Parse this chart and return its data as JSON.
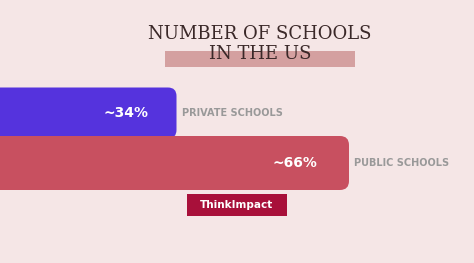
{
  "background_color": "#f5e6e6",
  "title_line1": "NUMBER OF SCHOOLS",
  "title_line2": "IN THE US",
  "title_color": "#3a2828",
  "title_fontsize": 13,
  "title_font": "serif",
  "underline_color": "#d4a0a0",
  "bar1_label": "~34%",
  "bar1_desc": "PRIVATE SCHOOLS",
  "bar1_color": "#5533dd",
  "bar2_label": "~66%",
  "bar2_desc": "PUBLIC SCHOOLS",
  "bar2_color": "#c85060",
  "label_color": "#ffffff",
  "desc_color": "#999999",
  "desc_fontsize": 7,
  "thinkimpact_bg": "#a8103a",
  "thinkimpact_text": "ThinkImpact",
  "thinkimpact_color": "#ffffff"
}
